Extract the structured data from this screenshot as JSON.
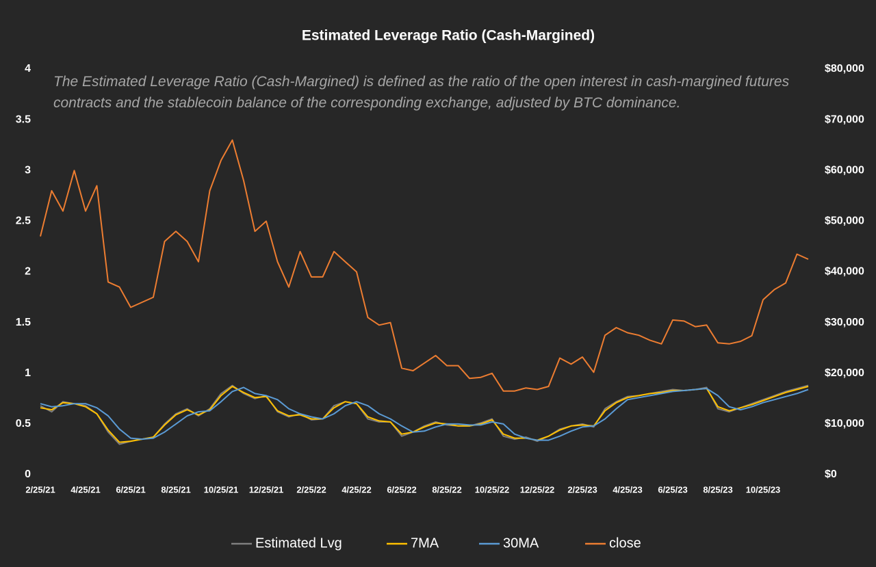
{
  "chart_data": {
    "type": "line",
    "title": "Estimated Leverage Ratio (Cash-Margined)",
    "annotation": "The Estimated Leverage Ratio (Cash-Margined) is defined as the ratio of the open interest in cash-margined futures contracts and the stablecoin balance of the corresponding exchange, adjusted by BTC dominance.",
    "categories": [
      "2/25/21",
      null,
      null,
      null,
      "4/25/21",
      null,
      null,
      null,
      "6/25/21",
      null,
      null,
      null,
      "8/25/21",
      null,
      null,
      null,
      "10/25/21",
      null,
      null,
      null,
      "12/25/21",
      null,
      null,
      null,
      "2/25/22",
      null,
      null,
      null,
      "4/25/22",
      null,
      null,
      null,
      "6/25/22",
      null,
      null,
      null,
      "8/25/22",
      null,
      null,
      null,
      "10/25/22",
      null,
      null,
      null,
      "12/25/22",
      null,
      null,
      null,
      "2/25/23",
      null,
      null,
      null,
      "4/25/23",
      null,
      null,
      null,
      "6/25/23",
      null,
      null,
      null,
      "8/25/23",
      null,
      null,
      null,
      "10/25/23",
      null,
      null,
      null,
      null
    ],
    "ylim": [
      0,
      4
    ],
    "yticks": [
      0,
      0.5,
      1,
      1.5,
      2,
      2.5,
      3,
      3.5,
      4
    ],
    "y2lim": [
      0,
      80000
    ],
    "y2ticks": [
      {
        "value": 0,
        "label": "$0"
      },
      {
        "value": 10000,
        "label": "$10,000"
      },
      {
        "value": 20000,
        "label": "$20,000"
      },
      {
        "value": 30000,
        "label": "$30,000"
      },
      {
        "value": 40000,
        "label": "$40,000"
      },
      {
        "value": 50000,
        "label": "$50,000"
      },
      {
        "value": 60000,
        "label": "$60,000"
      },
      {
        "value": 70000,
        "label": "$70,000"
      },
      {
        "value": 80000,
        "label": "$80,000"
      }
    ],
    "grid": false,
    "legend": "bottom",
    "series": [
      {
        "name": "Estimated Lvg",
        "color": "#7f7f7f",
        "values": [
          0.68,
          0.62,
          0.72,
          0.7,
          0.68,
          0.6,
          0.42,
          0.3,
          0.33,
          0.35,
          0.37,
          0.5,
          0.6,
          0.65,
          0.58,
          0.65,
          0.8,
          0.88,
          0.8,
          0.75,
          0.78,
          0.62,
          0.57,
          0.6,
          0.54,
          0.55,
          0.68,
          0.72,
          0.7,
          0.55,
          0.52,
          0.52,
          0.38,
          0.42,
          0.48,
          0.52,
          0.49,
          0.48,
          0.48,
          0.51,
          0.55,
          0.38,
          0.35,
          0.37,
          0.33,
          0.38,
          0.45,
          0.48,
          0.5,
          0.47,
          0.65,
          0.72,
          0.77,
          0.78,
          0.8,
          0.82,
          0.84,
          0.83,
          0.84,
          0.86,
          0.65,
          0.62,
          0.66,
          0.7,
          0.74,
          0.78,
          0.82,
          0.85,
          0.88
        ]
      },
      {
        "name": "7MA",
        "color": "#ffc000",
        "values": [
          0.66,
          0.64,
          0.71,
          0.7,
          0.67,
          0.6,
          0.44,
          0.32,
          0.33,
          0.35,
          0.37,
          0.49,
          0.59,
          0.64,
          0.59,
          0.64,
          0.78,
          0.87,
          0.81,
          0.76,
          0.77,
          0.63,
          0.58,
          0.59,
          0.55,
          0.55,
          0.66,
          0.72,
          0.7,
          0.57,
          0.53,
          0.52,
          0.4,
          0.42,
          0.47,
          0.51,
          0.5,
          0.48,
          0.48,
          0.5,
          0.54,
          0.4,
          0.36,
          0.36,
          0.34,
          0.38,
          0.44,
          0.48,
          0.49,
          0.48,
          0.63,
          0.71,
          0.76,
          0.78,
          0.8,
          0.81,
          0.83,
          0.83,
          0.84,
          0.85,
          0.67,
          0.63,
          0.66,
          0.69,
          0.73,
          0.77,
          0.81,
          0.84,
          0.87
        ]
      },
      {
        "name": "30MA",
        "color": "#5b9bd5",
        "values": [
          0.7,
          0.67,
          0.68,
          0.7,
          0.7,
          0.66,
          0.58,
          0.45,
          0.36,
          0.35,
          0.36,
          0.42,
          0.5,
          0.58,
          0.62,
          0.63,
          0.72,
          0.82,
          0.86,
          0.8,
          0.78,
          0.74,
          0.65,
          0.6,
          0.57,
          0.55,
          0.6,
          0.68,
          0.72,
          0.68,
          0.6,
          0.55,
          0.48,
          0.42,
          0.43,
          0.47,
          0.5,
          0.5,
          0.49,
          0.49,
          0.52,
          0.5,
          0.4,
          0.36,
          0.34,
          0.34,
          0.38,
          0.43,
          0.47,
          0.48,
          0.55,
          0.65,
          0.74,
          0.76,
          0.78,
          0.8,
          0.82,
          0.83,
          0.84,
          0.85,
          0.78,
          0.67,
          0.64,
          0.67,
          0.71,
          0.74,
          0.77,
          0.8,
          0.84
        ]
      },
      {
        "name": "close",
        "color": "#ed7d31",
        "axis": "y2",
        "values": [
          47000,
          56000,
          52000,
          60000,
          52000,
          57000,
          38000,
          37000,
          33000,
          34000,
          35000,
          46000,
          48000,
          46000,
          42000,
          56000,
          62000,
          66000,
          58000,
          48000,
          50000,
          42000,
          37000,
          44000,
          39000,
          39000,
          44000,
          42000,
          40000,
          31000,
          29500,
          30000,
          21000,
          20500,
          22000,
          23500,
          21500,
          21500,
          19000,
          19200,
          20000,
          16500,
          16500,
          17100,
          16800,
          17400,
          23000,
          21800,
          23200,
          20200,
          27500,
          29000,
          28000,
          27500,
          26500,
          25800,
          30500,
          30300,
          29200,
          29500,
          26000,
          25800,
          26300,
          27400,
          34500,
          36500,
          37800,
          43500,
          42500
        ]
      }
    ]
  }
}
